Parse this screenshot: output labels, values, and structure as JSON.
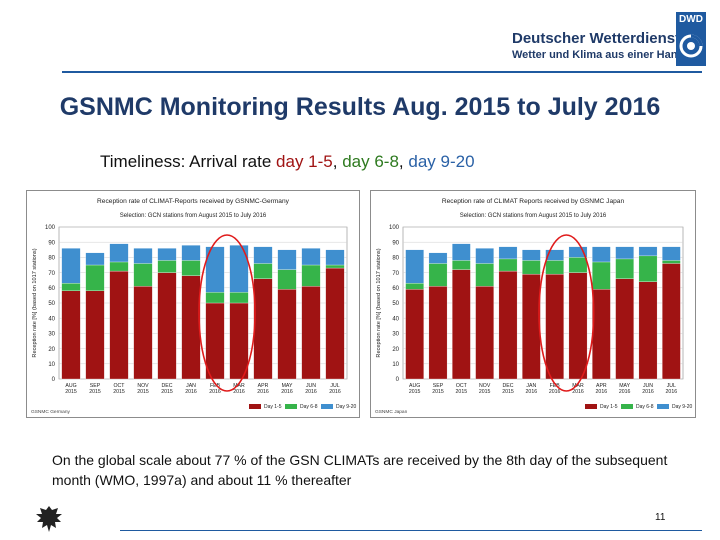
{
  "header": {
    "org_line1": "Deutscher Wetterdienst",
    "org_line2": "Wetter und Klima aus einer Hand",
    "logo_abbr": "DWD"
  },
  "slide": {
    "title": "GSNMC Monitoring Results Aug. 2015 to July 2016",
    "subtitle_prefix": "Timeliness: Arrival rate",
    "subtitle_day15": "day 1-5",
    "subtitle_day68": "day 6-8",
    "subtitle_day920": "day 9-20",
    "sep1": ",",
    "sep2": ",",
    "caption": "On the global scale about 77 % of the GSN CLIMATs are received by the 8th day of the subsequent month (WMO, 1997a) and about 11 % thereafter",
    "page_number": "11"
  },
  "colors": {
    "day15": "#a01313",
    "day68": "#36b44a",
    "day920": "#3f8fcf",
    "circle": "#e01b1b",
    "accent": "#1f3a68"
  },
  "chart_data": [
    {
      "type": "bar",
      "stacked": true,
      "title": "Reception rate of CLIMAT-Reports received by GSNMC-Germany",
      "subtitle": "Selection: GCN stations from August 2015 to July 2016",
      "ylabel": "Reception rate [%] (based on 1017 stations)",
      "ylim": [
        0,
        100
      ],
      "yticks": [
        "0",
        "10",
        "20",
        "30",
        "40",
        "50",
        "60",
        "70",
        "80",
        "90",
        "100"
      ],
      "grid": true,
      "categories": [
        "AUG 2015",
        "SEP 2015",
        "OCT 2015",
        "NOV 2015",
        "DEC 2015",
        "JAN 2016",
        "FEB 2016",
        "MAR 2016",
        "APR 2016",
        "MAY 2016",
        "JUN 2016",
        "JUL 2016"
      ],
      "series": [
        {
          "name": "Day 1-5",
          "values": [
            58,
            58,
            71,
            61,
            70,
            68,
            50,
            50,
            66,
            59,
            61,
            73
          ]
        },
        {
          "name": "Day 6-8",
          "values": [
            5,
            17,
            6,
            15,
            8,
            10,
            7,
            7,
            10,
            13,
            14,
            2
          ]
        },
        {
          "name": "Day 9-20",
          "values": [
            23,
            8,
            12,
            10,
            8,
            10,
            30,
            31,
            11,
            13,
            11,
            10
          ]
        }
      ],
      "highlight": [
        6,
        7
      ],
      "footer_left": "GSNMC Germany",
      "legend": [
        "Day 1-5",
        "Day 6-8",
        "Day 9-20"
      ],
      "legend_position": "bottom-right"
    },
    {
      "type": "bar",
      "stacked": true,
      "title": "Reception rate of CLIMAT Reports received by GSNMC Japan",
      "subtitle": "Selection: GCN stations from August 2015 to July 2016",
      "ylabel": "Reception rate [%] (based on 1017 stations)",
      "ylim": [
        0,
        100
      ],
      "yticks": [
        "0",
        "10",
        "20",
        "30",
        "40",
        "50",
        "60",
        "70",
        "80",
        "90",
        "100"
      ],
      "grid": true,
      "categories": [
        "AUG 2015",
        "SEP 2015",
        "OCT 2015",
        "NOV 2015",
        "DEC 2015",
        "JAN 2016",
        "FEB 2016",
        "MAR 2016",
        "APR 2016",
        "MAY 2016",
        "JUN 2016",
        "JUL 2016"
      ],
      "series": [
        {
          "name": "Day 1-5",
          "values": [
            59,
            61,
            72,
            61,
            71,
            69,
            69,
            70,
            59,
            66,
            64,
            76
          ]
        },
        {
          "name": "Day 6-8",
          "values": [
            4,
            15,
            6,
            15,
            8,
            9,
            9,
            10,
            18,
            13,
            17,
            2
          ]
        },
        {
          "name": "Day 9-20",
          "values": [
            22,
            7,
            11,
            10,
            8,
            7,
            7,
            7,
            10,
            8,
            6,
            9
          ]
        }
      ],
      "highlight": [
        6,
        7
      ],
      "footer_left": "GSNMC Japan",
      "legend": [
        "Day 1-5",
        "Day 6-8",
        "Day 9-20"
      ],
      "legend_position": "bottom-right"
    }
  ]
}
